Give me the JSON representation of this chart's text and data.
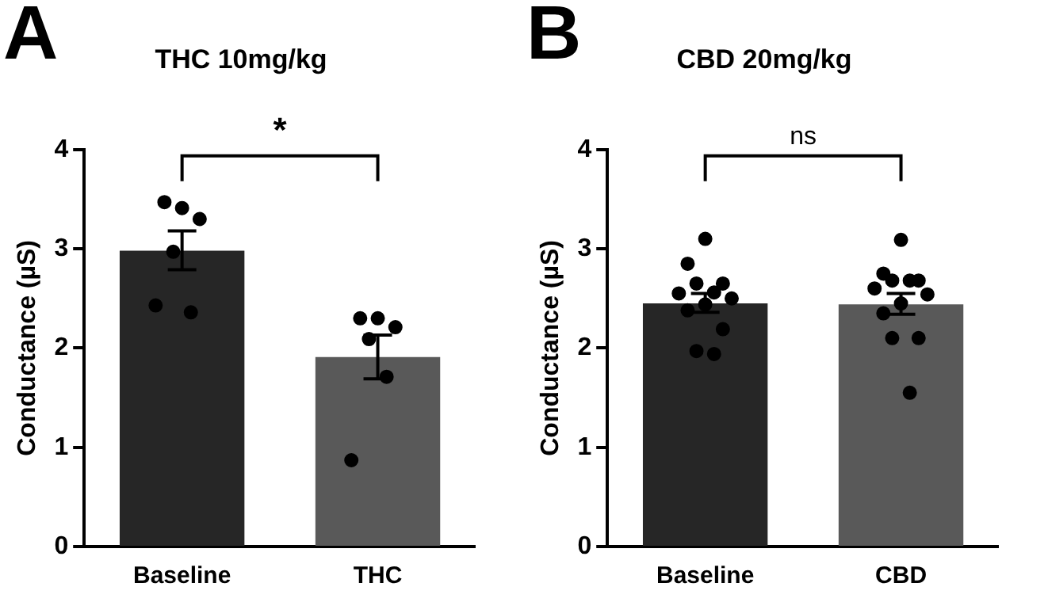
{
  "chart_data": [
    {
      "type": "bar",
      "title": "THC 10mg/kg",
      "ylabel": "Conductance (µS)",
      "categories": [
        "Baseline",
        "THC"
      ],
      "ylim": [
        0,
        4
      ],
      "yticks": [
        0,
        1,
        2,
        3,
        4
      ],
      "grid": false,
      "legend": false,
      "annotations": [
        "A",
        "*"
      ],
      "series": [
        {
          "colors": [
            "#262626",
            "#595959"
          ],
          "values": [
            2.98,
            1.91
          ],
          "errors": [
            [
              2.79,
              3.18
            ],
            [
              1.69,
              2.13
            ]
          ]
        },
        {
          "type": "scatter",
          "color": "#000000",
          "marker": "circle",
          "x": [
            "Baseline",
            "Baseline",
            "Baseline",
            "Baseline",
            "Baseline",
            "Baseline",
            "THC",
            "THC",
            "THC",
            "THC",
            "THC",
            "THC"
          ],
          "values": [
            3.41,
            3.47,
            3.3,
            2.97,
            2.36,
            2.43,
            2.3,
            2.3,
            2.21,
            2.09,
            1.71,
            0.87
          ]
        }
      ]
    },
    {
      "type": "bar",
      "title": "CBD 20mg/kg",
      "ylabel": "Conductance (µS)",
      "categories": [
        "Baseline",
        "CBD"
      ],
      "ylim": [
        0,
        4
      ],
      "yticks": [
        0,
        1,
        2,
        3,
        4
      ],
      "grid": false,
      "legend": false,
      "annotations": [
        "B",
        "ns"
      ],
      "series": [
        {
          "colors": [
            "#262626",
            "#595959"
          ],
          "values": [
            2.45,
            2.44
          ],
          "errors": [
            [
              2.36,
              2.55
            ],
            [
              2.34,
              2.55
            ]
          ]
        },
        {
          "type": "scatter",
          "color": "#000000",
          "marker": "circle",
          "x": [
            "Baseline",
            "Baseline",
            "Baseline",
            "Baseline",
            "Baseline",
            "Baseline",
            "Baseline",
            "Baseline",
            "Baseline",
            "Baseline",
            "Baseline",
            "Baseline",
            "CBD",
            "CBD",
            "CBD",
            "CBD",
            "CBD",
            "CBD",
            "CBD",
            "CBD",
            "CBD",
            "CBD",
            "CBD",
            "CBD"
          ],
          "values": [
            3.1,
            2.85,
            2.65,
            2.65,
            2.56,
            2.55,
            2.5,
            2.44,
            2.38,
            2.19,
            1.97,
            1.94,
            3.09,
            2.75,
            2.68,
            2.68,
            2.68,
            2.6,
            2.54,
            2.45,
            2.35,
            2.1,
            2.1,
            1.55
          ]
        }
      ]
    }
  ]
}
